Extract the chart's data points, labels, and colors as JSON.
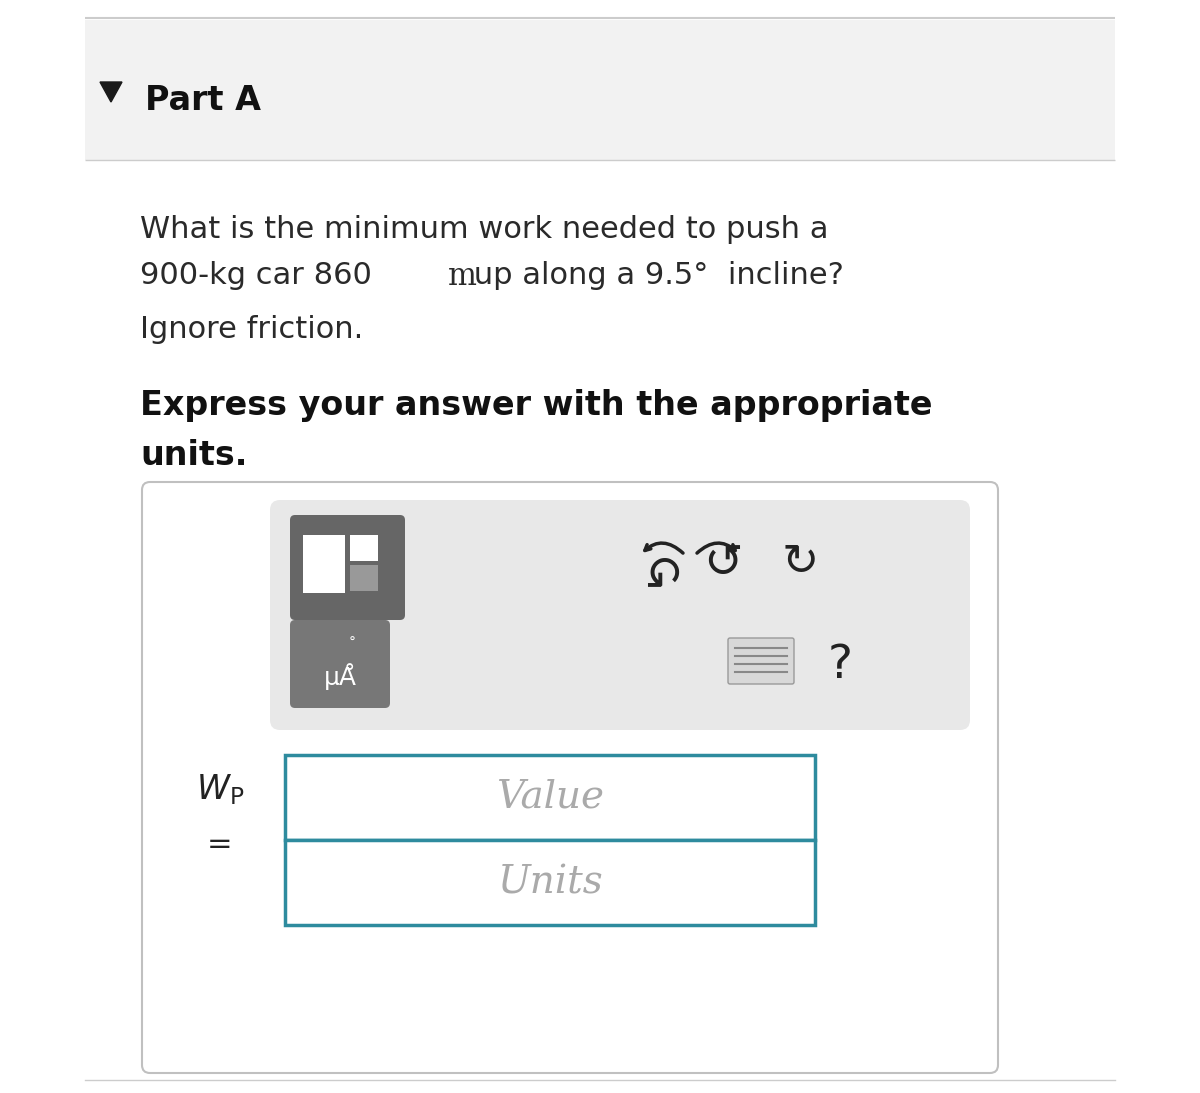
{
  "bg_color": "#f5f5f5",
  "white_bg": "#ffffff",
  "part_a_text": "Part A",
  "triangle_color": "#1a1a1a",
  "question_line1": "What is the minimum work needed to push a",
  "question_line2a": "900-kg car 860 ",
  "question_line2b": "m",
  "question_line2c": " up along a 9.5°  incline?",
  "question_line3": "Ignore friction.",
  "bold_line1": "Express your answer with the appropriate",
  "bold_line2": "units.",
  "value_placeholder": "Value",
  "units_placeholder": "Units",
  "toolbar_bg": "#e8e8e8",
  "toolbar_border": "#cccccc",
  "input_border": "#2e8b9e",
  "input_bg": "#ffffff",
  "outer_box_border": "#c0c0c0",
  "font_size_question": 22,
  "font_size_bold": 24,
  "font_size_part_a": 24,
  "font_size_placeholder": 28,
  "sep_color": "#cccccc",
  "header_bg": "#f2f2f2",
  "btn1_color": "#666666",
  "btn2_color": "#777777",
  "icon_color": "#222222"
}
